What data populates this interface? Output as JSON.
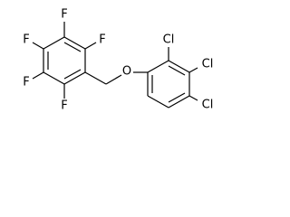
{
  "atoms": {
    "fluorines": [
      "F",
      "F",
      "F",
      "F",
      "F"
    ],
    "oxygen": "O",
    "chlorines": [
      "Cl",
      "Cl",
      "Cl"
    ]
  }
}
